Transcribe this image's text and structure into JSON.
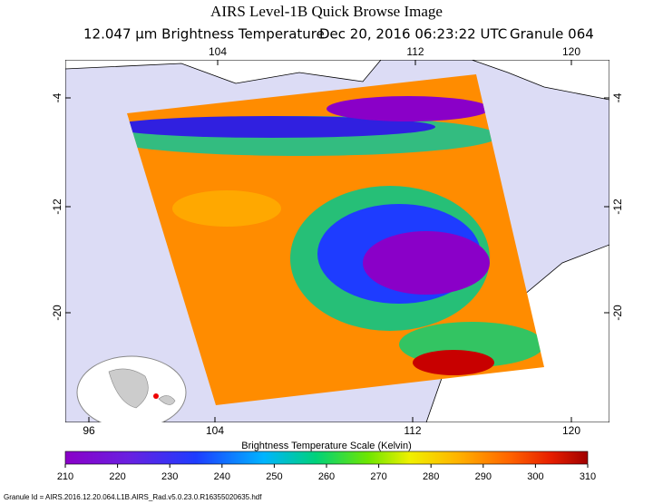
{
  "header": {
    "title": "AIRS Level-1B Quick Browse Image",
    "subtitle": [
      "12.047 μm Brightness Temperature",
      "Dec 20, 2016 06:23:22 UTC",
      "Granule 064"
    ]
  },
  "map": {
    "lon_ticks_top": [
      104,
      112,
      120
    ],
    "lon_ticks_bottom": [
      96,
      104,
      112,
      120
    ],
    "lat_ticks": [
      -4,
      -12,
      -20
    ]
  },
  "colorbar": {
    "title": "Brightness Temperature Scale (Kelvin)",
    "range": [
      210,
      310
    ],
    "ticks": [
      210,
      220,
      230,
      240,
      250,
      260,
      270,
      280,
      290,
      300,
      310
    ]
  },
  "footer": "Granule Id = AIRS.2016.12.20.064.L1B.AIRS_Rad.v5.0.23.0.R16355020635.hdf"
}
